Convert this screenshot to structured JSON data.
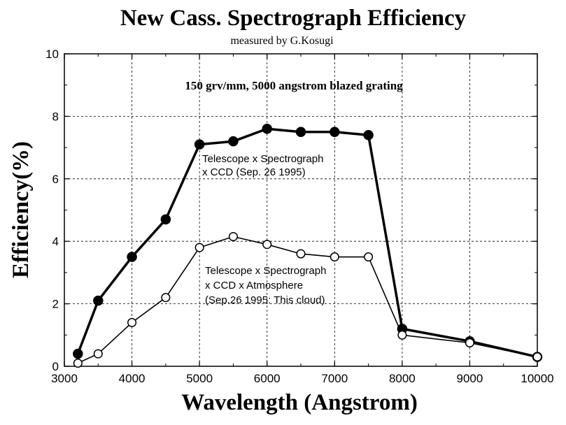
{
  "chart_data": {
    "type": "line",
    "title": "New Cass. Spectrograph Efficiency",
    "subtitle": "measured by G.Kosugi",
    "annotation": "150 grv/mm, 5000 angstrom blazed grating",
    "xlabel": "Wavelength (Angstrom)",
    "ylabel": "Efficiency(%)",
    "xlim": [
      3000,
      10000
    ],
    "ylim": [
      0,
      10
    ],
    "xticks": [
      "3000",
      "4000",
      "5000",
      "6000",
      "7000",
      "8000",
      "9000",
      "10000"
    ],
    "yticks": [
      "0",
      "2",
      "4",
      "6",
      "8",
      "10"
    ],
    "grid": true,
    "series": [
      {
        "label_lines": [
          "Telescope x Spectrograph",
          "x CCD (Sep. 26 1995)"
        ],
        "marker": "filled-circle",
        "line_style": "thick",
        "x": [
          3200,
          3500,
          4000,
          4500,
          5000,
          5500,
          6000,
          6500,
          7000,
          7500,
          8000,
          9000,
          10000
        ],
        "y": [
          0.4,
          2.1,
          3.5,
          4.7,
          7.1,
          7.2,
          7.6,
          7.5,
          7.5,
          7.4,
          1.2,
          0.8,
          0.3
        ]
      },
      {
        "label_lines": [
          "Telescope x Spectrograph",
          "x CCD x Atmosphere",
          "(Sep.26 1995: This cloud)"
        ],
        "marker": "open-circle",
        "line_style": "thin",
        "x": [
          3200,
          3500,
          4000,
          4500,
          5000,
          5500,
          6000,
          6500,
          7000,
          7500,
          8000,
          9000,
          10000
        ],
        "y": [
          0.1,
          0.4,
          1.4,
          2.2,
          3.8,
          4.15,
          3.9,
          3.6,
          3.5,
          3.5,
          1.0,
          0.75,
          0.3
        ]
      }
    ]
  }
}
